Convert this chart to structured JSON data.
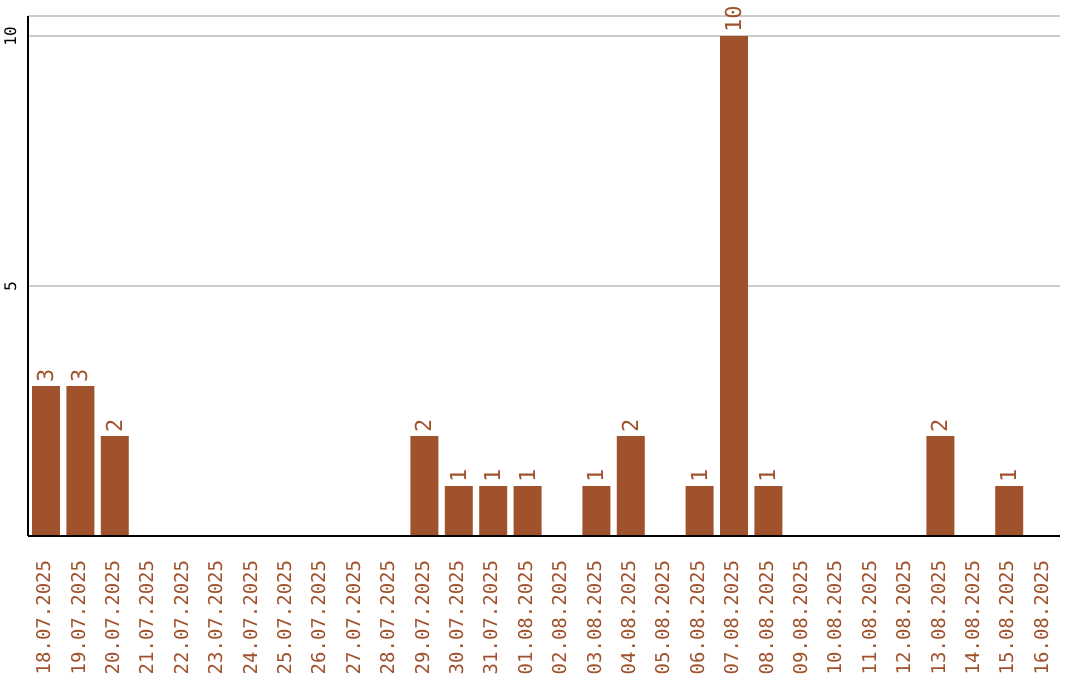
{
  "chart_data": {
    "type": "bar",
    "categories": [
      "18.07.2025",
      "19.07.2025",
      "20.07.2025",
      "21.07.2025",
      "22.07.2025",
      "23.07.2025",
      "24.07.2025",
      "25.07.2025",
      "26.07.2025",
      "27.07.2025",
      "28.07.2025",
      "29.07.2025",
      "30.07.2025",
      "31.07.2025",
      "01.08.2025",
      "02.08.2025",
      "03.08.2025",
      "04.08.2025",
      "05.08.2025",
      "06.08.2025",
      "07.08.2025",
      "08.08.2025",
      "09.08.2025",
      "10.08.2025",
      "11.08.2025",
      "12.08.2025",
      "13.08.2025",
      "14.08.2025",
      "15.08.2025",
      "16.08.2025"
    ],
    "values": [
      3,
      3,
      2,
      0,
      0,
      0,
      0,
      0,
      0,
      0,
      0,
      2,
      1,
      1,
      1,
      0,
      1,
      2,
      0,
      1,
      10,
      1,
      0,
      0,
      0,
      0,
      2,
      0,
      1,
      0
    ],
    "value_labels": [
      "3",
      "3",
      "2",
      null,
      null,
      null,
      null,
      null,
      null,
      null,
      null,
      "2",
      "1",
      "1",
      "1",
      null,
      "1",
      "2",
      null,
      "1",
      "10",
      "1",
      null,
      null,
      null,
      null,
      "2",
      null,
      "1",
      null
    ],
    "color": "#a0522d",
    "ylim": [
      0,
      10.4
    ],
    "yticks": [
      5,
      10
    ],
    "grid": "y",
    "legend": false
  }
}
